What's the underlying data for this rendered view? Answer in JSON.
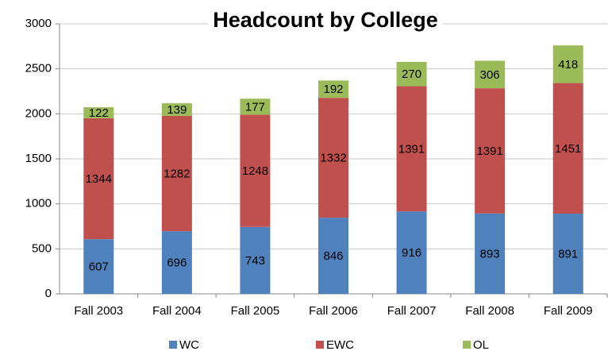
{
  "chart_data": {
    "type": "stacked_bar",
    "title": "Headcount by College",
    "categories": [
      "Fall 2003",
      "Fall 2004",
      "Fall 2005",
      "Fall 2006",
      "Fall 2007",
      "Fall 2008",
      "Fall 2009"
    ],
    "series": [
      {
        "name": "WC",
        "color": "#4f81bd",
        "values": [
          607,
          696,
          743,
          846,
          916,
          893,
          891
        ]
      },
      {
        "name": "EWC",
        "color": "#c0504d",
        "values": [
          1344,
          1282,
          1248,
          1332,
          1391,
          1391,
          1451
        ]
      },
      {
        "name": "OL",
        "color": "#9bbb59",
        "values": [
          122,
          139,
          177,
          192,
          270,
          306,
          418
        ]
      }
    ],
    "ylim": [
      0,
      3000
    ],
    "yticks": [
      0,
      500,
      1000,
      1500,
      2000,
      2500,
      3000
    ],
    "grid": true,
    "legend": "bottom"
  }
}
